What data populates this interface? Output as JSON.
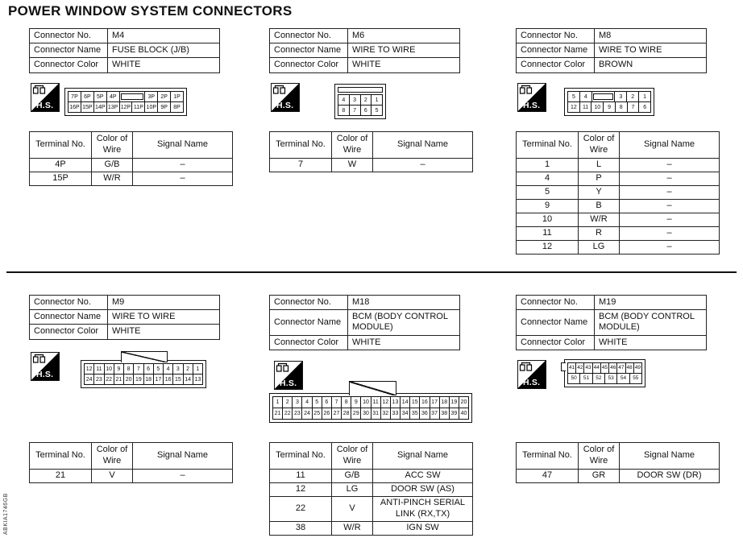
{
  "page": {
    "title": "POWER WINDOW SYSTEM CONNECTORS",
    "figure_code": "ABKIA1746GB",
    "hs_label": "H.S."
  },
  "labels": {
    "connector_no": "Connector No.",
    "connector_name": "Connector Name",
    "connector_color": "Connector Color",
    "terminal_no": "Terminal No.",
    "color_of_wire": "Color of Wire",
    "signal_name": "Signal Name"
  },
  "connectors": [
    {
      "id": "M4",
      "name": "FUSE BLOCK (J/B)",
      "color": "WHITE",
      "pin_diagram": {
        "tab": null,
        "rows": [
          [
            "7P",
            "6P",
            "5P",
            "4P",
            "BLANK",
            "3P",
            "2P",
            "1P"
          ],
          [
            "16P",
            "15P",
            "14P",
            "13P",
            "12P",
            "11P",
            "10P",
            "9P",
            "8P"
          ]
        ]
      },
      "terminals": [
        [
          "4P",
          "G/B",
          "–"
        ],
        [
          "15P",
          "W/R",
          "–"
        ]
      ]
    },
    {
      "id": "M6",
      "name": "WIRE TO WIRE",
      "color": "WHITE",
      "pin_diagram": {
        "tab": "bar",
        "rows": [
          [
            "4",
            "3",
            "2",
            "1"
          ],
          [
            "8",
            "7",
            "6",
            "5"
          ]
        ]
      },
      "terminals": [
        [
          "7",
          "W",
          "–"
        ]
      ]
    },
    {
      "id": "M8",
      "name": "WIRE TO WIRE",
      "color": "BROWN",
      "pin_diagram": {
        "tab": null,
        "rows": [
          [
            "5",
            "4",
            "BLANK",
            "3",
            "2",
            "1"
          ],
          [
            "12",
            "11",
            "10",
            "9",
            "8",
            "7",
            "6"
          ]
        ]
      },
      "terminals": [
        [
          "1",
          "L",
          "–"
        ],
        [
          "4",
          "P",
          "–"
        ],
        [
          "5",
          "Y",
          "–"
        ],
        [
          "9",
          "B",
          "–"
        ],
        [
          "10",
          "W/R",
          "–"
        ],
        [
          "11",
          "R",
          "–"
        ],
        [
          "12",
          "LG",
          "–"
        ]
      ]
    },
    {
      "id": "M9",
      "name": "WIRE TO WIRE",
      "color": "WHITE",
      "pin_diagram": {
        "tab": "trap",
        "rows": [
          [
            "12",
            "11",
            "10",
            "9",
            "8",
            "7",
            "6",
            "5",
            "4",
            "3",
            "2",
            "1"
          ],
          [
            "24",
            "23",
            "22",
            "21",
            "20",
            "19",
            "18",
            "17",
            "16",
            "15",
            "14",
            "13"
          ]
        ]
      },
      "terminals": [
        [
          "21",
          "V",
          "–"
        ]
      ]
    },
    {
      "id": "M18",
      "name": "BCM (BODY CONTROL MODULE)",
      "color": "WHITE",
      "pin_diagram": {
        "tab": "peak",
        "rows": [
          [
            "1",
            "2",
            "3",
            "4",
            "5",
            "6",
            "7",
            "8",
            "9",
            "10",
            "11",
            "12",
            "13",
            "14",
            "15",
            "16",
            "17",
            "18",
            "19",
            "20"
          ],
          [
            "21",
            "22",
            "23",
            "24",
            "25",
            "26",
            "27",
            "28",
            "29",
            "30",
            "31",
            "32",
            "33",
            "34",
            "35",
            "36",
            "37",
            "38",
            "39",
            "40"
          ]
        ]
      },
      "terminals": [
        [
          "11",
          "G/B",
          "ACC SW"
        ],
        [
          "12",
          "LG",
          "DOOR SW (AS)"
        ],
        [
          "22",
          "V",
          "ANTI-PINCH SERIAL LINK (RX,TX)"
        ],
        [
          "38",
          "W/R",
          "IGN SW"
        ]
      ]
    },
    {
      "id": "M19",
      "name": "BCM (BODY CONTROL MODULE)",
      "color": "WHITE",
      "pin_diagram": {
        "tab": "notch",
        "rows": [
          [
            "41",
            "42",
            "43",
            "44",
            "45",
            "46",
            "47",
            "48",
            "49"
          ],
          [
            "50",
            "51",
            "52",
            "53",
            "54",
            "55"
          ]
        ]
      },
      "terminals": [
        [
          "47",
          "GR",
          "DOOR SW (DR)"
        ]
      ]
    }
  ]
}
